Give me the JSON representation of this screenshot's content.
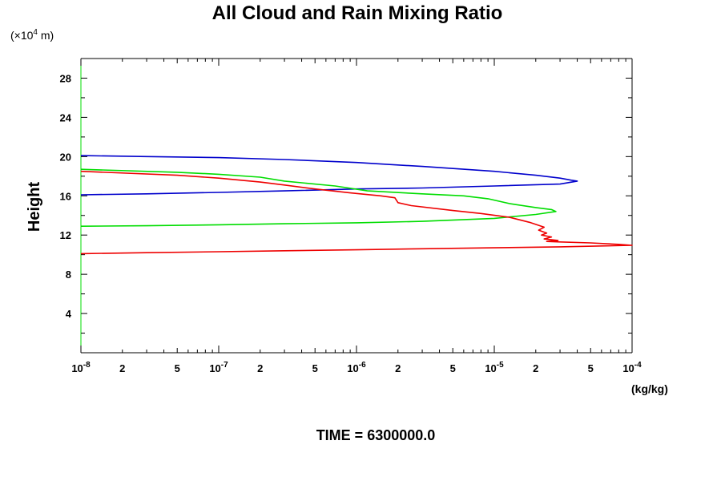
{
  "chart_data": {
    "type": "line",
    "title": "All Cloud and Rain Mixing Ratio",
    "ylabel": "Height",
    "y_scale_label": "(×10",
    "y_scale_exp": "4",
    "y_scale_unit": " m)",
    "x_unit_label": "(kg/kg)",
    "footer_label": "TIME = 6300000.0",
    "xscale": "log",
    "xlim": [
      1e-08,
      0.0001
    ],
    "ylim": [
      0,
      30
    ],
    "x_major_ticks": [
      {
        "value": 1e-08,
        "base": "10",
        "exp": "-8"
      },
      {
        "value": 1e-07,
        "base": "10",
        "exp": "-7"
      },
      {
        "value": 1e-06,
        "base": "10",
        "exp": "-6"
      },
      {
        "value": 1e-05,
        "base": "10",
        "exp": "-5"
      },
      {
        "value": 0.0001,
        "base": "10",
        "exp": "-4"
      }
    ],
    "x_minor_labels": [
      "2",
      "5"
    ],
    "y_ticks": [
      4,
      8,
      12,
      16,
      20,
      24,
      28
    ],
    "grid": false,
    "series": [
      {
        "color": "#0000cc",
        "points": [
          [
            1e-08,
            20.1
          ],
          [
            3e-08,
            20.0
          ],
          [
            1e-07,
            19.9
          ],
          [
            3e-07,
            19.7
          ],
          [
            1e-06,
            19.4
          ],
          [
            3e-06,
            19.0
          ],
          [
            1e-05,
            18.5
          ],
          [
            2e-05,
            18.1
          ],
          [
            3e-05,
            17.8
          ],
          [
            3.6e-05,
            17.6
          ],
          [
            4e-05,
            17.5
          ],
          [
            3e-05,
            17.2
          ],
          [
            1e-05,
            17.0
          ],
          [
            3e-06,
            16.8
          ],
          [
            1e-06,
            16.7
          ],
          [
            3e-07,
            16.5
          ],
          [
            1e-07,
            16.35
          ],
          [
            3e-08,
            16.2
          ],
          [
            1e-08,
            16.1
          ]
        ]
      },
      {
        "color": "#00dd00",
        "points": [
          [
            1e-08,
            18.7
          ],
          [
            5e-08,
            18.4
          ],
          [
            1e-07,
            18.2
          ],
          [
            2e-07,
            17.9
          ],
          [
            3e-07,
            17.5
          ],
          [
            7e-07,
            17.0
          ],
          [
            1.2e-06,
            16.5
          ],
          [
            3e-06,
            16.2
          ],
          [
            6e-06,
            16.0
          ],
          [
            9e-06,
            15.7
          ],
          [
            1.3e-05,
            15.2
          ],
          [
            2e-05,
            14.8
          ],
          [
            2.6e-05,
            14.6
          ],
          [
            2.8e-05,
            14.4
          ],
          [
            2e-05,
            14.1
          ],
          [
            1e-05,
            13.7
          ],
          [
            3e-06,
            13.4
          ],
          [
            1e-06,
            13.25
          ],
          [
            3e-07,
            13.15
          ],
          [
            1e-07,
            13.05
          ],
          [
            3e-08,
            12.95
          ],
          [
            1e-08,
            12.9
          ]
        ]
      },
      {
        "color": "#ee0000",
        "points": [
          [
            1e-08,
            18.5
          ],
          [
            5e-08,
            18.1
          ],
          [
            1e-07,
            17.8
          ],
          [
            2e-07,
            17.4
          ],
          [
            3e-07,
            17.1
          ],
          [
            5e-07,
            16.7
          ],
          [
            9e-07,
            16.3
          ],
          [
            1.5e-06,
            16.0
          ],
          [
            1.9e-06,
            15.8
          ],
          [
            2e-06,
            15.3
          ],
          [
            2.5e-06,
            15.0
          ],
          [
            5e-06,
            14.5
          ],
          [
            8e-06,
            14.2
          ],
          [
            1.3e-05,
            13.8
          ],
          [
            1.8e-05,
            13.3
          ],
          [
            2.3e-05,
            12.8
          ],
          [
            2.1e-05,
            12.5
          ],
          [
            2.4e-05,
            12.2
          ],
          [
            2.2e-05,
            12.0
          ],
          [
            2.6e-05,
            11.8
          ],
          [
            2.3e-05,
            11.6
          ],
          [
            2.9e-05,
            11.45
          ],
          [
            2.4e-05,
            11.35
          ],
          [
            3e-05,
            11.3
          ],
          [
            5e-05,
            11.2
          ],
          [
            8e-05,
            11.05
          ],
          [
            0.0001,
            10.95
          ],
          [
            3e-05,
            10.8
          ],
          [
            1e-05,
            10.7
          ],
          [
            3e-06,
            10.6
          ],
          [
            1e-06,
            10.5
          ],
          [
            3e-07,
            10.4
          ],
          [
            1e-07,
            10.3
          ],
          [
            3e-08,
            10.2
          ],
          [
            1e-08,
            10.1
          ]
        ]
      }
    ]
  }
}
